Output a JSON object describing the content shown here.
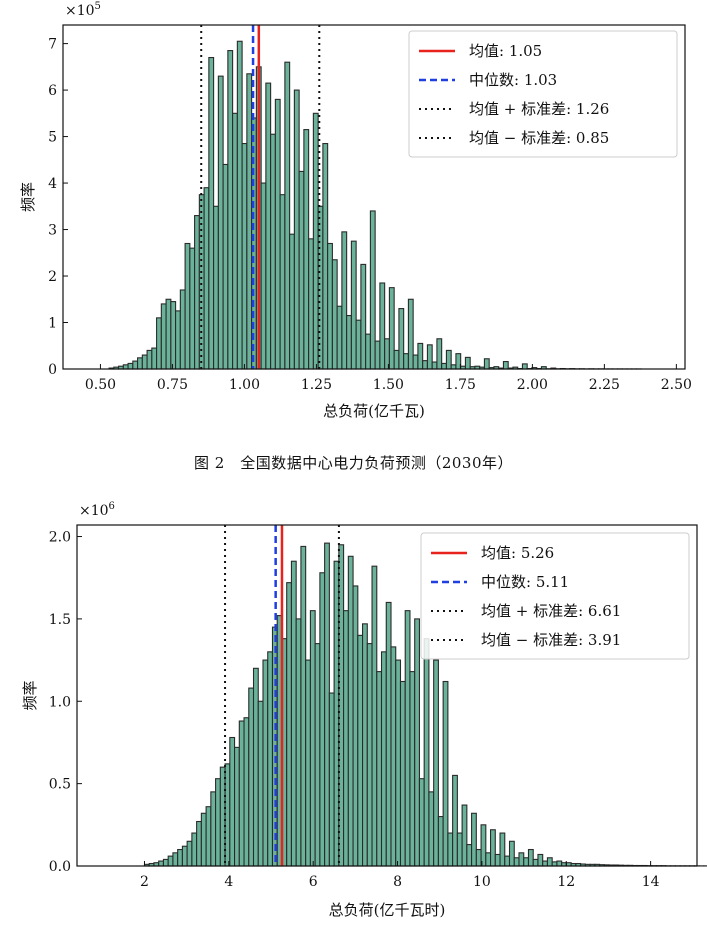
{
  "caption": "图 2　全国数据中心电力负荷预测（2030年）",
  "colors": {
    "bar_fill": "#6ab39a",
    "bar_edge": "#2b2b2b",
    "mean": "#e8221d",
    "median": "#1f3fe0",
    "std": "#111111"
  },
  "chart_data": [
    {
      "type": "bar",
      "xlabel": "总负荷(亿千瓦)",
      "ylabel": "频率",
      "y_scale_label_base": "×10",
      "y_scale_label_exp": "5",
      "xlim": [
        0.37,
        2.53
      ],
      "ylim": [
        0,
        7.4
      ],
      "xticks": [
        0.5,
        0.75,
        1.0,
        1.25,
        1.5,
        1.75,
        2.0,
        2.25,
        2.5
      ],
      "xtick_labels": [
        "0.50",
        "0.75",
        "1.00",
        "1.25",
        "1.50",
        "1.75",
        "2.00",
        "2.25",
        "2.50"
      ],
      "yticks": [
        0,
        1,
        2,
        3,
        4,
        5,
        6,
        7
      ],
      "ytick_labels": [
        "0",
        "1",
        "2",
        "3",
        "4",
        "5",
        "6",
        "7"
      ],
      "bin_width": 0.0165,
      "bins_start": 0.53,
      "values": [
        0.02,
        0.04,
        0.06,
        0.09,
        0.12,
        0.17,
        0.24,
        0.3,
        0.4,
        0.45,
        1.1,
        1.4,
        1.5,
        1.45,
        1.25,
        1.7,
        2.7,
        2.6,
        3.3,
        3.75,
        3.9,
        6.7,
        3.5,
        6.3,
        4.4,
        6.85,
        5.5,
        7.05,
        4.85,
        6.35,
        5.4,
        6.5,
        4.0,
        6.15,
        5.05,
        5.8,
        3.75,
        6.6,
        2.9,
        6.0,
        4.25,
        5.15,
        2.8,
        5.5,
        3.5,
        4.85,
        2.7,
        2.35,
        1.35,
        2.95,
        1.15,
        2.75,
        1.05,
        2.25,
        0.75,
        3.4,
        0.6,
        1.85,
        0.65,
        1.75,
        0.4,
        1.3,
        0.33,
        1.5,
        0.3,
        0.55,
        0.18,
        0.52,
        0.15,
        0.65,
        0.12,
        0.4,
        0.09,
        0.33,
        0.06,
        0.25,
        0.05,
        0.06,
        0.04,
        0.22,
        0.03,
        0.05,
        0.02,
        0.16,
        0.02,
        0.04,
        0.01,
        0.11,
        0.01,
        0.03,
        0.01,
        0.05,
        0.005,
        0.02,
        0.005,
        0.01,
        0.004,
        0.008,
        0.003,
        0.005,
        0.002,
        0.004,
        0.002,
        0.003,
        0.001,
        0.002,
        0.001,
        0.002,
        0.001,
        0.001,
        0.001,
        0.001
      ],
      "mean": 1.05,
      "median": 1.03,
      "std_low": 0.85,
      "std_high": 1.26,
      "legend": [
        "均值: 1.05",
        "中位数: 1.03",
        "均值 + 标准差: 1.26",
        "均值 − 标准差: 0.85"
      ],
      "legend_position": "top-right"
    },
    {
      "type": "bar",
      "xlabel": "总负荷(亿千瓦时)",
      "ylabel": "频率",
      "y_scale_label_base": "×10",
      "y_scale_label_exp": "6",
      "xlim": [
        0.4,
        15.1
      ],
      "ylim": [
        0,
        2.07
      ],
      "xticks": [
        2,
        4,
        6,
        8,
        10,
        12,
        14
      ],
      "xtick_labels": [
        "2",
        "4",
        "6",
        "8",
        "10",
        "12",
        "14"
      ],
      "yticks": [
        0,
        0.5,
        1.0,
        1.5,
        2.0
      ],
      "ytick_labels": [
        "0.0",
        "0.5",
        "1.0",
        "1.5",
        "2.0"
      ],
      "bin_width": 0.1124,
      "bins_start": 2.0,
      "values": [
        0.01,
        0.015,
        0.02,
        0.03,
        0.04,
        0.06,
        0.08,
        0.1,
        0.12,
        0.15,
        0.2,
        0.27,
        0.32,
        0.36,
        0.45,
        0.53,
        0.6,
        0.62,
        0.78,
        0.72,
        0.88,
        0.9,
        1.08,
        1.2,
        1.0,
        1.25,
        1.3,
        1.45,
        1.52,
        1.38,
        1.72,
        1.85,
        1.5,
        1.94,
        1.25,
        1.55,
        1.35,
        1.78,
        1.96,
        1.05,
        1.85,
        1.95,
        1.55,
        1.88,
        1.7,
        1.4,
        1.47,
        1.35,
        1.82,
        1.18,
        1.3,
        1.6,
        1.33,
        1.25,
        1.12,
        1.55,
        1.18,
        1.5,
        0.53,
        1.38,
        0.45,
        1.25,
        0.3,
        1.12,
        0.2,
        0.55,
        0.2,
        0.37,
        0.13,
        0.32,
        0.1,
        0.25,
        0.08,
        0.22,
        0.07,
        0.2,
        0.06,
        0.15,
        0.05,
        0.08,
        0.05,
        0.1,
        0.04,
        0.07,
        0.03,
        0.05,
        0.025,
        0.03,
        0.02,
        0.02,
        0.015,
        0.015,
        0.012,
        0.01,
        0.01,
        0.01,
        0.008,
        0.007,
        0.006,
        0.006,
        0.005,
        0.004,
        0.004,
        0.003,
        0.003,
        0.003,
        0.002,
        0.002,
        0.002,
        0.002,
        0.001,
        0.001,
        0.001,
        0.001,
        0.001,
        0.001,
        0.001,
        0.001,
        0.001,
        0.001,
        0.001
      ],
      "mean": 5.26,
      "median": 5.11,
      "std_low": 3.91,
      "std_high": 6.61,
      "legend": [
        "均值: 5.26",
        "中位数: 5.11",
        "均值 + 标准差: 6.61",
        "均值 − 标准差: 3.91"
      ],
      "legend_position": "top-right"
    }
  ]
}
